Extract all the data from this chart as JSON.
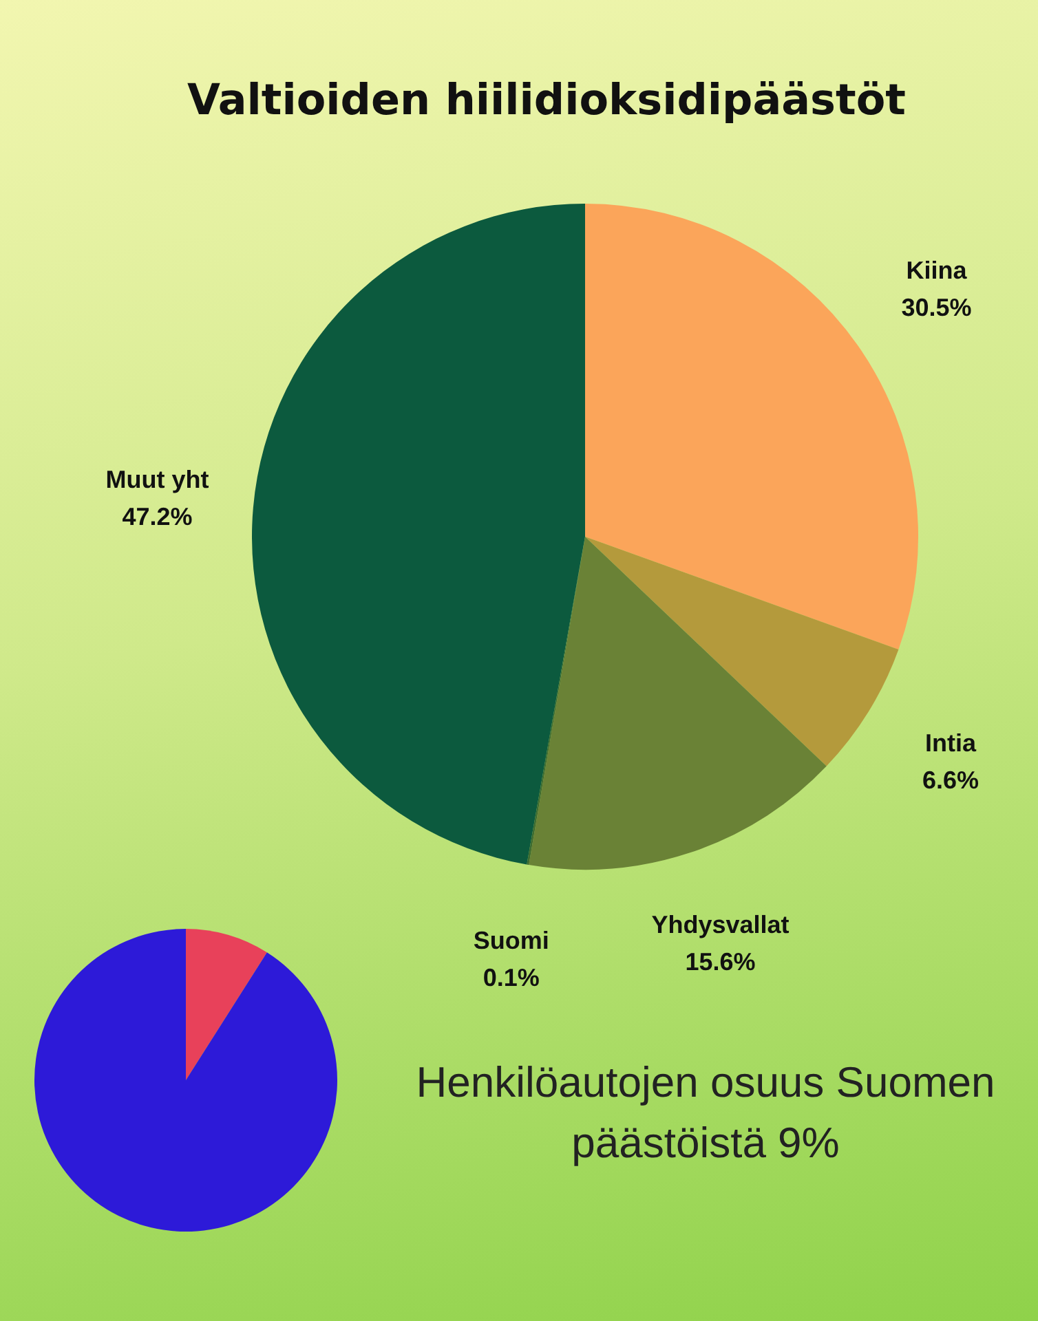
{
  "chart_data": [
    {
      "type": "pie",
      "title": "Valtioiden hiilidioksidipäästöt",
      "categories": [
        "Kiina",
        "Intia",
        "Yhdysvallat",
        "Suomi",
        "Muut yht"
      ],
      "values": [
        30.5,
        6.6,
        15.6,
        0.1,
        47.2
      ],
      "colors": [
        "#fba55a",
        "#b49a3c",
        "#6a8236",
        "#3f6b30",
        "#0c5a3e"
      ],
      "value_labels": [
        "30.5%",
        "6.6%",
        "15.6%",
        "0.1%",
        "47.2%"
      ]
    },
    {
      "type": "pie",
      "categories": [
        null,
        null
      ],
      "values": [
        9,
        91
      ],
      "colors": [
        "#e8415a",
        "#2d1ad8"
      ],
      "annotations": [
        "Henkilöautojen osuus Suomen päästöistä 9%"
      ]
    }
  ]
}
